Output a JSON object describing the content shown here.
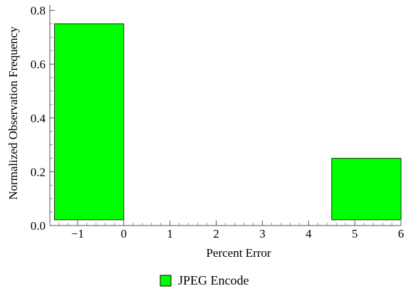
{
  "chart_data": {
    "type": "bar",
    "title": "",
    "xlabel": "Percent Error",
    "ylabel": "Normalized Observation Frequency",
    "xlim": [
      -1.6,
      6
    ],
    "ylim": [
      0,
      0.82
    ],
    "x_ticks": [
      -1,
      0,
      1,
      2,
      3,
      4,
      5,
      6
    ],
    "x_tick_labels": [
      "−1",
      "0",
      "1",
      "2",
      "3",
      "4",
      "5",
      "6"
    ],
    "y_ticks": [
      0.0,
      0.2,
      0.4,
      0.6,
      0.8
    ],
    "y_tick_labels": [
      "0.0",
      "0.2",
      "0.4",
      "0.6",
      "0.8"
    ],
    "series": [
      {
        "name": "JPEG Encode",
        "color": "#00ff00",
        "bins": [
          {
            "start": -1.5,
            "end": 0,
            "value": 0.75
          },
          {
            "start": 4.5,
            "end": 6,
            "value": 0.25
          }
        ]
      }
    ],
    "legend_position": "bottom-center",
    "grid": false
  }
}
